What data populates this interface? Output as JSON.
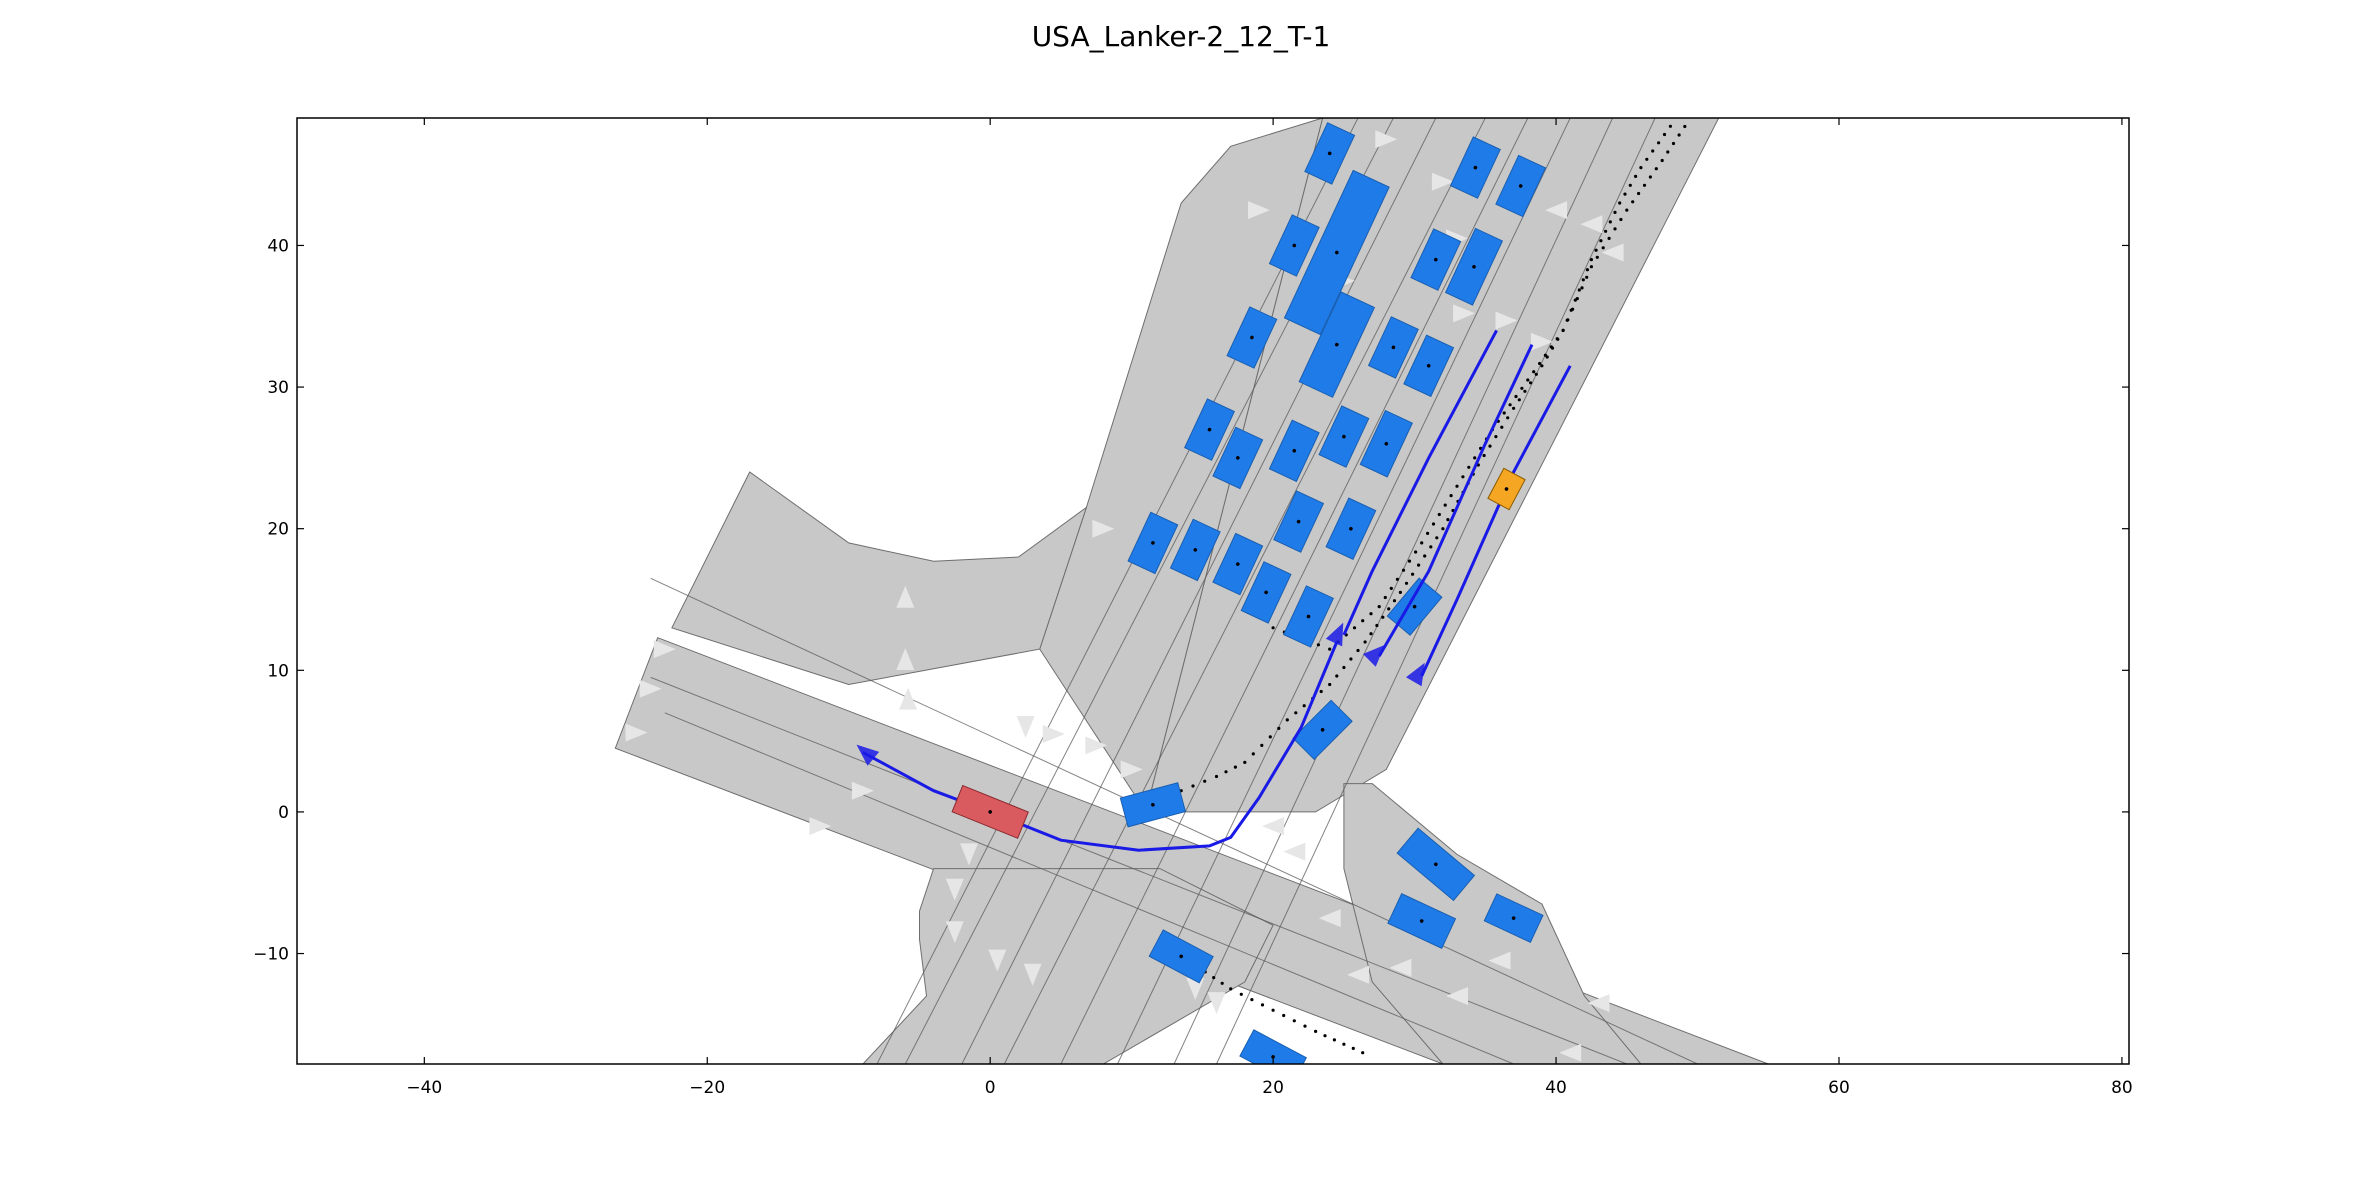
{
  "chart_data": {
    "type": "scatter",
    "title": "USA_Lanker-2_12_T-1",
    "xlabel": "",
    "ylabel": "",
    "xlim": [
      -49,
      80.5
    ],
    "ylim": [
      -17.8,
      49
    ],
    "xticks": [
      -40,
      -20,
      0,
      20,
      40,
      60,
      80
    ],
    "yticks": [
      -10,
      0,
      10,
      20,
      30,
      40
    ],
    "xtick_labels": [
      "−40",
      "−20",
      "0",
      "20",
      "40",
      "60",
      "80"
    ],
    "ytick_labels": [
      "−10",
      "0",
      "10",
      "20",
      "30",
      "40"
    ],
    "grid": false,
    "colors": {
      "road": "#c8c8c8",
      "road_edge": "#6e6e6e",
      "lane_line": "#5a5a5a",
      "arrow": "#e6e6e6",
      "ego": "#d95a5f",
      "vehicle": "#1f7be8",
      "goal_vehicle": "#f5a623",
      "trajectory": "#1a1ae6",
      "dots": "#000000"
    },
    "road_regions": [
      {
        "name": "northeast-road",
        "points": [
          [
            23.5,
            49
          ],
          [
            51.5,
            49
          ],
          [
            28,
            3
          ],
          [
            23,
            0
          ],
          [
            21.5,
            0
          ],
          [
            11,
            0
          ]
        ]
      },
      {
        "name": "north-branch",
        "points": [
          [
            6.8,
            21.5
          ],
          [
            13.5,
            43
          ],
          [
            17,
            47
          ],
          [
            23.5,
            49
          ],
          [
            11,
            0
          ],
          [
            3.5,
            11.5
          ]
        ]
      },
      {
        "name": "west-spur",
        "points": [
          [
            -17,
            24
          ],
          [
            -22.5,
            13
          ],
          [
            -10,
            9
          ],
          [
            3.5,
            11.5
          ],
          [
            6.8,
            21.5
          ],
          [
            2,
            18
          ],
          [
            -4,
            17.7
          ],
          [
            -10,
            19
          ]
        ]
      },
      {
        "name": "main-crossing",
        "points": [
          [
            -23.5,
            12.3
          ],
          [
            55,
            -17.8
          ],
          [
            32,
            -17.8
          ],
          [
            -26.5,
            4.5
          ]
        ]
      },
      {
        "name": "south-road",
        "points": [
          [
            -9,
            -17.8
          ],
          [
            8,
            -17.8
          ],
          [
            18,
            -12
          ],
          [
            20,
            -8
          ],
          [
            12,
            -4
          ],
          [
            -4,
            -4
          ],
          [
            -5,
            -7
          ],
          [
            -5,
            -9
          ],
          [
            -4.5,
            -13
          ]
        ]
      },
      {
        "name": "southeast-shoulder",
        "points": [
          [
            27,
            2
          ],
          [
            33,
            -3
          ],
          [
            39,
            -6.5
          ],
          [
            42,
            -13
          ],
          [
            46,
            -17.8
          ],
          [
            32,
            -17.8
          ],
          [
            27,
            -12
          ],
          [
            25,
            -4
          ],
          [
            25,
            2
          ]
        ]
      }
    ],
    "lane_lines": [
      [
        [
          -24,
          16.5
        ],
        [
          50,
          -17.8
        ]
      ],
      [
        [
          -24,
          9.5
        ],
        [
          45,
          -17.8
        ]
      ],
      [
        [
          -23,
          7
        ],
        [
          37,
          -17.8
        ]
      ],
      [
        [
          -8,
          -17.8
        ],
        [
          26,
          49
        ]
      ],
      [
        [
          -6,
          -17.8
        ],
        [
          28.5,
          49
        ]
      ],
      [
        [
          -2,
          -17.8
        ],
        [
          31.5,
          49
        ]
      ],
      [
        [
          1,
          -17.8
        ],
        [
          35,
          49
        ]
      ],
      [
        [
          5,
          -17.8
        ],
        [
          38,
          49
        ]
      ],
      [
        [
          9,
          -17.8
        ],
        [
          41,
          49
        ]
      ],
      [
        [
          13,
          -17.8
        ],
        [
          44,
          49
        ]
      ],
      [
        [
          16,
          -17.8
        ],
        [
          47,
          49
        ]
      ]
    ],
    "arrows": [
      [
        -25,
        5.6,
        0
      ],
      [
        -24,
        8.7,
        0
      ],
      [
        -23,
        11.5,
        0
      ],
      [
        -9,
        1.5,
        0
      ],
      [
        -12,
        -1,
        0
      ],
      [
        -6,
        10.8,
        90
      ],
      [
        -5.8,
        8,
        90
      ],
      [
        -6,
        15.2,
        90
      ],
      [
        8,
        20,
        0
      ],
      [
        19,
        42.5,
        0
      ],
      [
        28,
        47.5,
        0
      ],
      [
        32,
        44.5,
        0
      ],
      [
        25,
        37.5,
        0
      ],
      [
        33,
        40.5,
        0
      ],
      [
        33.5,
        35.2,
        0
      ],
      [
        36.5,
        34.7,
        0
      ],
      [
        39,
        33.2,
        0
      ],
      [
        40,
        42.5,
        180
      ],
      [
        42.5,
        41.5,
        180
      ],
      [
        44,
        39.5,
        180
      ],
      [
        -1.5,
        -3,
        270
      ],
      [
        -2.5,
        -5.5,
        270
      ],
      [
        -2.5,
        -8.5,
        270
      ],
      [
        0.5,
        -10.5,
        270
      ],
      [
        3,
        -11.5,
        270
      ],
      [
        2.5,
        6,
        270
      ],
      [
        4.5,
        5.5,
        0
      ],
      [
        7.5,
        4.7,
        0
      ],
      [
        10,
        3,
        0
      ],
      [
        20,
        -1,
        180
      ],
      [
        21.5,
        -2.8,
        180
      ],
      [
        24,
        -7.5,
        180
      ],
      [
        26,
        -11.5,
        180
      ],
      [
        29,
        -11,
        180
      ],
      [
        33,
        -13,
        180
      ],
      [
        36,
        -10.5,
        180
      ],
      [
        43,
        -13.5,
        180
      ],
      [
        41,
        -17,
        180
      ],
      [
        14.5,
        -12.5,
        270
      ],
      [
        16,
        -13.5,
        270
      ]
    ],
    "ego": {
      "x": 0,
      "y": 0,
      "length": 5,
      "width": 2,
      "angle": -22
    },
    "goal_vehicle": {
      "x": 36.5,
      "y": 22.8,
      "length": 2.4,
      "width": 1.7,
      "angle": 62
    },
    "vehicles": [
      {
        "x": 24,
        "y": 46.5,
        "length": 3.8,
        "width": 2.1,
        "angle": 65
      },
      {
        "x": 34.3,
        "y": 45.5,
        "length": 3.8,
        "width": 2.1,
        "angle": 65
      },
      {
        "x": 37.5,
        "y": 44.2,
        "length": 3.8,
        "width": 2.1,
        "angle": 65
      },
      {
        "x": 21.5,
        "y": 40,
        "length": 3.8,
        "width": 2.1,
        "angle": 65
      },
      {
        "x": 24.5,
        "y": 39.5,
        "length": 11.5,
        "width": 2.8,
        "angle": 65
      },
      {
        "x": 31.5,
        "y": 39,
        "length": 3.8,
        "width": 2.1,
        "angle": 65
      },
      {
        "x": 34.2,
        "y": 38.5,
        "length": 5,
        "width": 2.1,
        "angle": 65
      },
      {
        "x": 18.5,
        "y": 33.5,
        "length": 3.8,
        "width": 2.1,
        "angle": 65
      },
      {
        "x": 24.5,
        "y": 33,
        "length": 7,
        "width": 2.6,
        "angle": 65
      },
      {
        "x": 28.5,
        "y": 32.8,
        "length": 3.8,
        "width": 2.1,
        "angle": 65
      },
      {
        "x": 31,
        "y": 31.5,
        "length": 3.8,
        "width": 2.1,
        "angle": 65
      },
      {
        "x": 15.5,
        "y": 27,
        "length": 3.8,
        "width": 2.1,
        "angle": 65
      },
      {
        "x": 17.5,
        "y": 25,
        "length": 3.8,
        "width": 2.1,
        "angle": 65
      },
      {
        "x": 21.5,
        "y": 25.5,
        "length": 3.8,
        "width": 2.1,
        "angle": 65
      },
      {
        "x": 25,
        "y": 26.5,
        "length": 3.8,
        "width": 2.1,
        "angle": 65
      },
      {
        "x": 28,
        "y": 26,
        "length": 4.2,
        "width": 2.1,
        "angle": 65
      },
      {
        "x": 11.5,
        "y": 19,
        "length": 3.8,
        "width": 2.1,
        "angle": 65
      },
      {
        "x": 14.5,
        "y": 18.5,
        "length": 3.8,
        "width": 2.1,
        "angle": 65
      },
      {
        "x": 17.5,
        "y": 17.5,
        "length": 3.8,
        "width": 2.1,
        "angle": 65
      },
      {
        "x": 19.5,
        "y": 15.5,
        "length": 3.8,
        "width": 2.1,
        "angle": 65
      },
      {
        "x": 21.8,
        "y": 20.5,
        "length": 3.8,
        "width": 2.1,
        "angle": 65
      },
      {
        "x": 25.5,
        "y": 20,
        "length": 3.8,
        "width": 2.1,
        "angle": 65
      },
      {
        "x": 22.5,
        "y": 13.8,
        "length": 3.8,
        "width": 2.1,
        "angle": 65
      },
      {
        "x": 30,
        "y": 14.5,
        "length": 3.5,
        "width": 2.1,
        "angle": 50
      },
      {
        "x": 23.5,
        "y": 5.8,
        "length": 3.8,
        "width": 2.1,
        "angle": 45
      },
      {
        "x": 11.5,
        "y": 0.5,
        "length": 4.2,
        "width": 2.1,
        "angle": 15
      },
      {
        "x": 31.5,
        "y": -3.7,
        "length": 5.2,
        "width": 2.3,
        "angle": -40
      },
      {
        "x": 30.5,
        "y": -7.7,
        "length": 4.2,
        "width": 2.3,
        "angle": -25
      },
      {
        "x": 37,
        "y": -7.5,
        "length": 3.6,
        "width": 2.1,
        "angle": -25
      },
      {
        "x": 13.5,
        "y": -10.2,
        "length": 4,
        "width": 2.1,
        "angle": -28
      },
      {
        "x": 20,
        "y": -17.3,
        "length": 4.2,
        "width": 2.1,
        "angle": -28
      }
    ],
    "trajectories": [
      {
        "start": [
          -9,
          4.2
        ],
        "points": [
          [
            -9,
            4.2
          ],
          [
            -4,
            1.5
          ],
          [
            0,
            0
          ],
          [
            5,
            -2
          ],
          [
            10.5,
            -2.7
          ],
          [
            15.5,
            -2.4
          ],
          [
            17,
            -1.8
          ],
          [
            19,
            1
          ],
          [
            22,
            6
          ],
          [
            24.5,
            12
          ]
        ],
        "arrow_end": [
          25,
          12.5
        ],
        "arrow_angle": 65
      },
      {
        "start": [
          25,
          12.5
        ],
        "points": [
          [
            25,
            12.5
          ],
          [
            27,
            17
          ],
          [
            31,
            25
          ],
          [
            35.8,
            34
          ]
        ]
      },
      {
        "start": [
          27.5,
          11
        ],
        "points": [
          [
            27.5,
            11
          ],
          [
            31,
            17
          ],
          [
            35,
            26
          ],
          [
            38.3,
            33
          ]
        ]
      },
      {
        "start": [
          30.5,
          9.6
        ],
        "points": [
          [
            30.5,
            9.6
          ],
          [
            33,
            15
          ],
          [
            37,
            24
          ],
          [
            41,
            31.5
          ]
        ]
      }
    ],
    "trajectory_arrows": [
      [
        24.6,
        12.6,
        65
      ],
      [
        27.3,
        11.2,
        45
      ],
      [
        30.3,
        9.8,
        60
      ],
      [
        -8.8,
        4.2,
        140
      ]
    ],
    "dot_paths": [
      [
        [
          13.5,
          1.5
        ],
        [
          16,
          2.5
        ],
        [
          18,
          3.5
        ],
        [
          21,
          6.5
        ],
        [
          24,
          9
        ],
        [
          26.5,
          12
        ],
        [
          29,
          15.5
        ],
        [
          32,
          20
        ],
        [
          34.5,
          24.5
        ],
        [
          37,
          28.5
        ],
        [
          39,
          31.5
        ],
        [
          40.5,
          34
        ],
        [
          42.5,
          39
        ],
        [
          44.5,
          43
        ],
        [
          46,
          45.5
        ],
        [
          48.5,
          49
        ]
      ],
      [
        [
          20,
          13
        ],
        [
          24,
          11.5
        ],
        [
          27.5,
          14.5
        ],
        [
          30.5,
          19
        ],
        [
          33,
          23
        ],
        [
          35.5,
          27
        ],
        [
          38,
          30.5
        ],
        [
          40.5,
          34
        ],
        [
          42.5,
          38.5
        ],
        [
          45,
          42.5
        ],
        [
          47.5,
          46
        ],
        [
          49.5,
          49
        ]
      ],
      [
        [
          14,
          -10.5
        ],
        [
          17,
          -12.5
        ],
        [
          20,
          -14
        ],
        [
          23,
          -15.5
        ],
        [
          27,
          -17.3
        ]
      ]
    ]
  }
}
